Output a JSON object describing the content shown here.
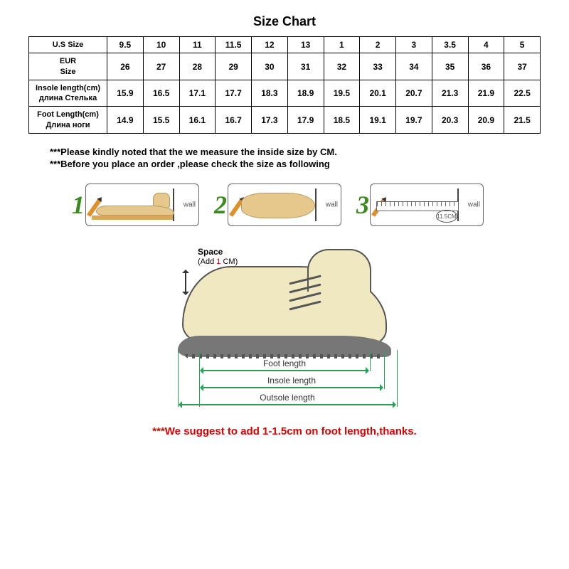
{
  "title": "Size Chart",
  "table": {
    "rowHeaders": [
      "U.S Size",
      "EUR\nSize",
      "Insole length(cm)\nдлина Стелька",
      "Foot Length(cm)\nДлина ноги"
    ],
    "rows": [
      [
        "9.5",
        "10",
        "11",
        "11.5",
        "12",
        "13",
        "1",
        "2",
        "3",
        "3.5",
        "4",
        "5"
      ],
      [
        "26",
        "27",
        "28",
        "29",
        "30",
        "31",
        "32",
        "33",
        "34",
        "35",
        "36",
        "37"
      ],
      [
        "15.9",
        "16.5",
        "17.1",
        "17.7",
        "18.3",
        "18.9",
        "19.5",
        "20.1",
        "20.7",
        "21.3",
        "21.9",
        "22.5"
      ],
      [
        "14.9",
        "15.5",
        "16.1",
        "16.7",
        "17.3",
        "17.9",
        "18.5",
        "19.1",
        "19.7",
        "20.3",
        "20.9",
        "21.5"
      ]
    ]
  },
  "notes": {
    "line1": "***Please kindly noted that the we measure the inside size by CM.",
    "line2": "***Before you place an order ,please check the size as following"
  },
  "steps": {
    "wall": "wall",
    "rulerValue": "11.5CM"
  },
  "diagram": {
    "spaceTitle": "Space",
    "spaceSub": "(Add 1 CM)",
    "foot": "Foot length",
    "insole": "Insole length",
    "outsole": "Outsole length"
  },
  "suggest": "***We suggest to add 1-1.5cm on foot length,thanks."
}
